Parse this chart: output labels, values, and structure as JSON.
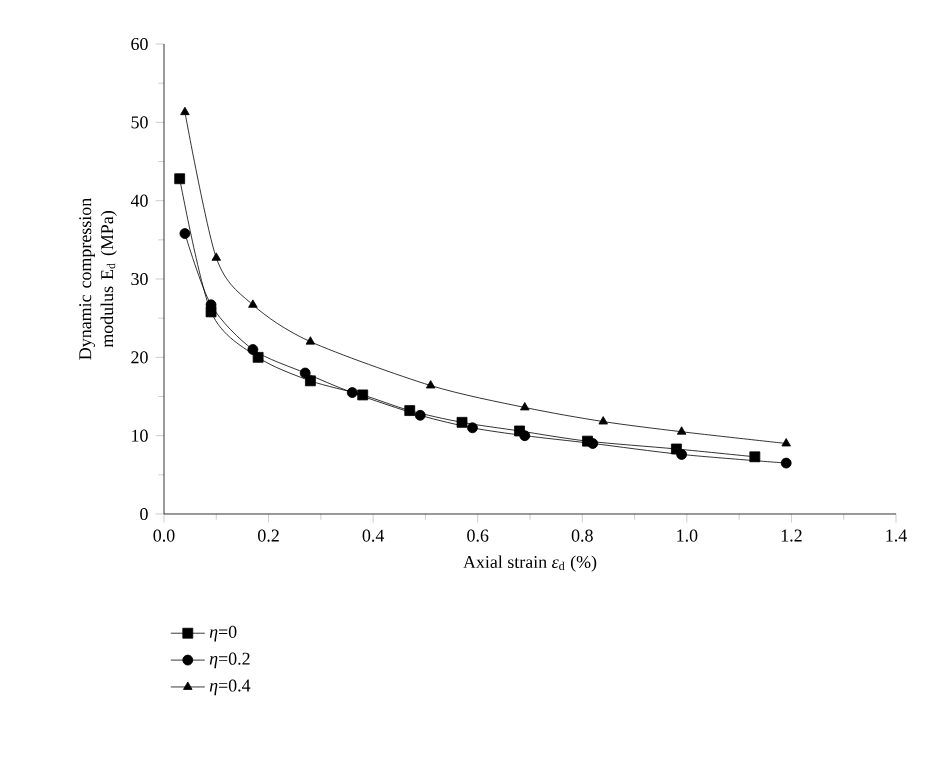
{
  "chart_data": {
    "type": "line",
    "xlabel": "Axial strain *ε*$_{d}$ (%)",
    "ylabel": "Dynamic compression modulus E$_{d}$ (MPa)",
    "xlim": [
      0,
      1.4
    ],
    "ylim": [
      0,
      60
    ],
    "xticks": [
      {
        "value": 0,
        "label": "0.0"
      },
      {
        "value": 0.2,
        "label": "0.2"
      },
      {
        "value": 0.4,
        "label": "0.4"
      },
      {
        "value": 0.6,
        "label": "0.6"
      },
      {
        "value": 0.8,
        "label": "0.8"
      },
      {
        "value": 1,
        "label": "1.0"
      },
      {
        "value": 1.2,
        "label": "1.2"
      },
      {
        "value": 1.4,
        "label": "1.4"
      }
    ],
    "yticks": [
      0,
      10,
      20,
      30,
      40,
      50,
      60
    ],
    "grid": false,
    "legend": "bottom left",
    "line_style": "solid",
    "series": [
      {
        "name": "*η*=0",
        "color": "#000000",
        "marker": "square",
        "x": [
          0.03,
          0.09,
          0.18,
          0.28,
          0.38,
          0.47,
          0.57,
          0.68,
          0.81,
          0.98,
          1.13
        ],
        "values": [
          42.8,
          25.8,
          20,
          17,
          15.2,
          13.2,
          11.7,
          10.6,
          9.3,
          8.3,
          7.3
        ]
      },
      {
        "name": "*η*=0.2",
        "color": "#000000",
        "marker": "circle",
        "x": [
          0.04,
          0.09,
          0.17,
          0.27,
          0.36,
          0.49,
          0.59,
          0.69,
          0.82,
          0.99,
          1.19
        ],
        "values": [
          35.8,
          26.7,
          21,
          18,
          15.5,
          12.6,
          11,
          10,
          9,
          7.6,
          6.5
        ]
      },
      {
        "name": "*η*=0.4",
        "color": "#000000",
        "marker": "triangle",
        "x": [
          0.04,
          0.1,
          0.17,
          0.28,
          0.51,
          0.69,
          0.84,
          0.99,
          1.19
        ],
        "values": [
          51.3,
          32.7,
          26.7,
          22,
          16.4,
          13.6,
          11.8,
          10.5,
          9
        ]
      }
    ]
  }
}
